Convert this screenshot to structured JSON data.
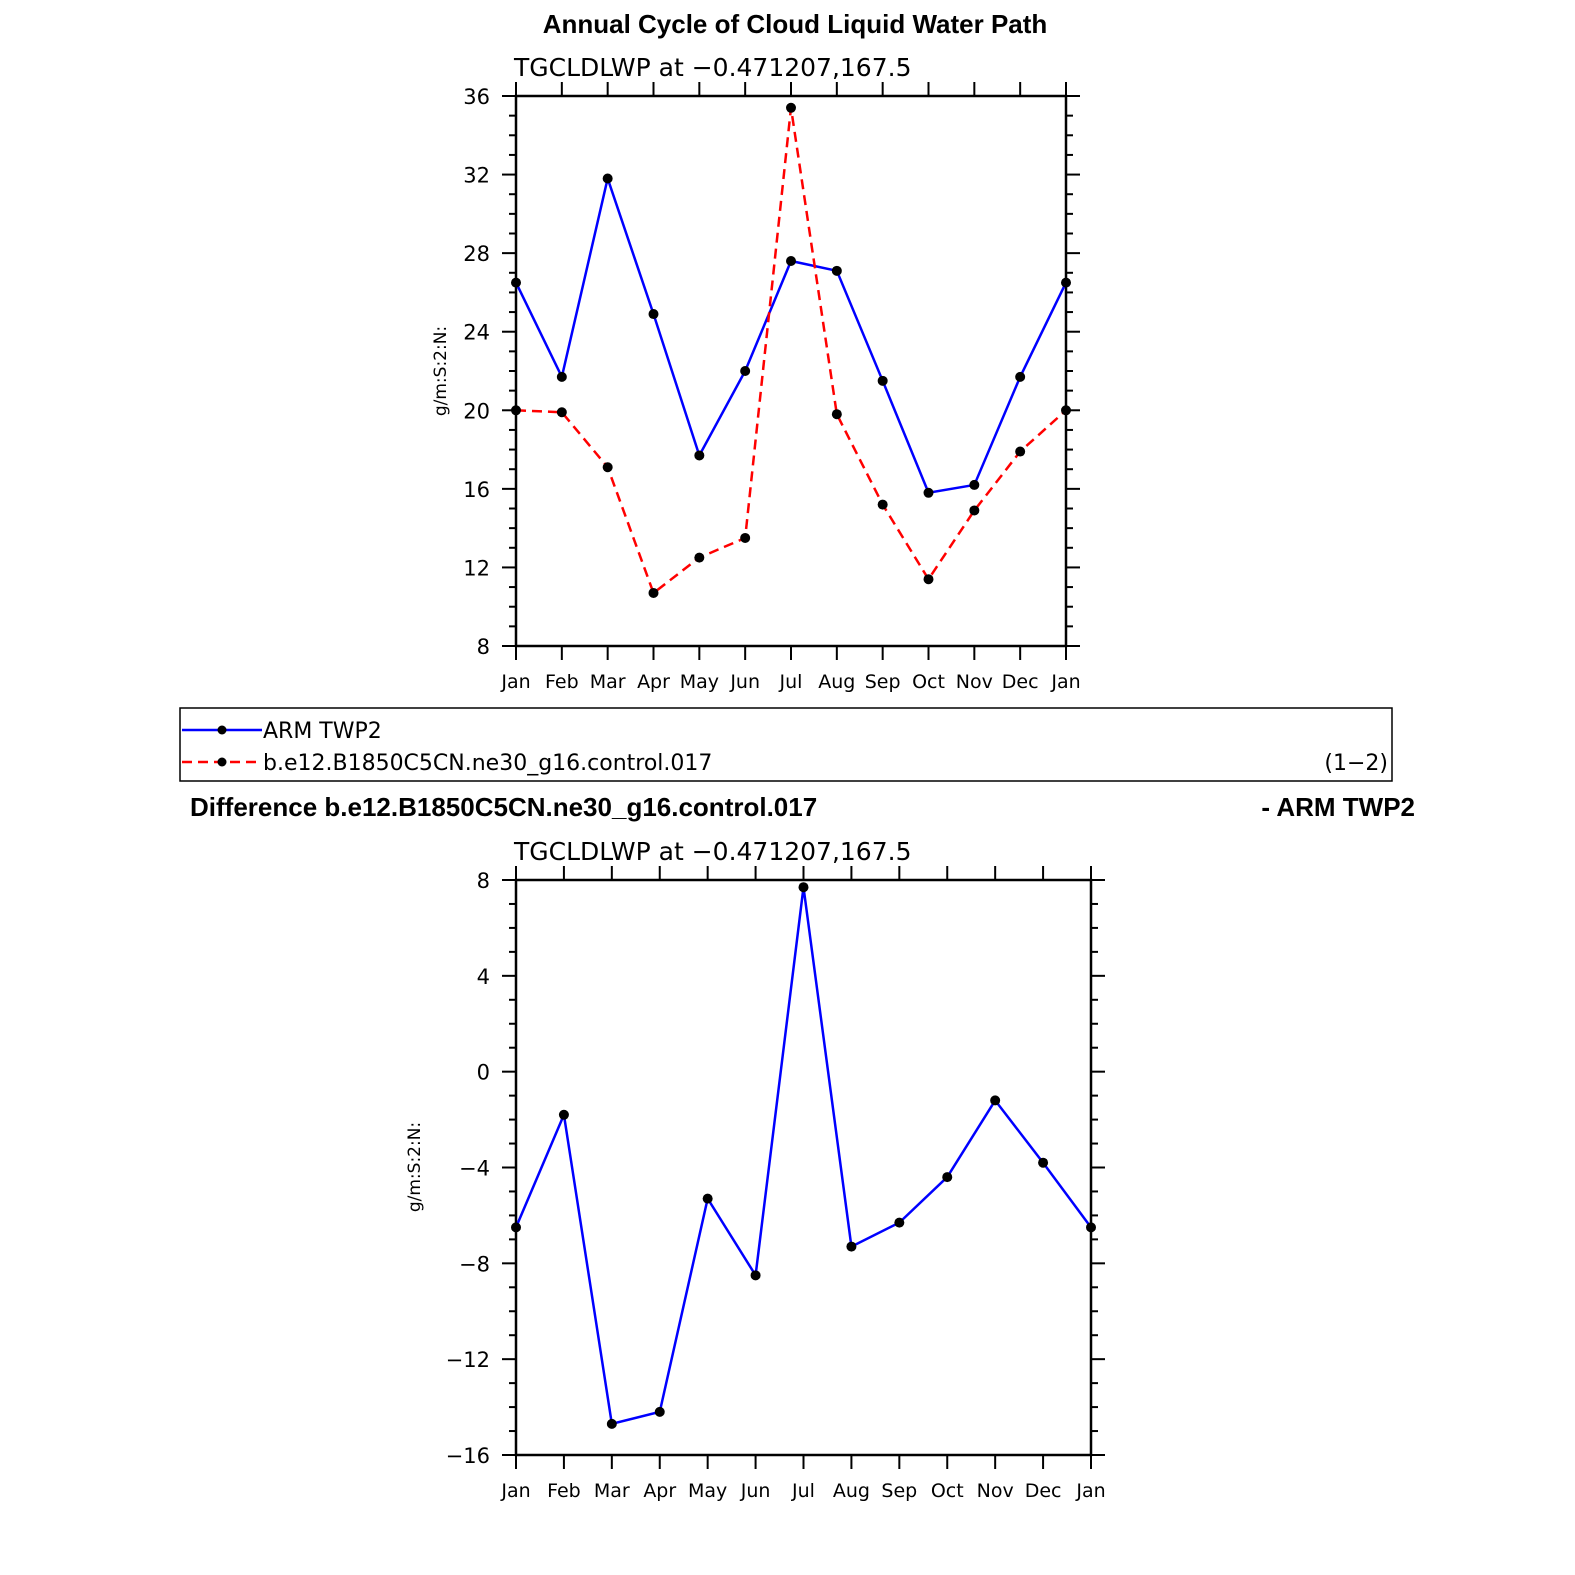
{
  "page": {
    "title": "Annual Cycle of Cloud Liquid Water Path",
    "diff_title_left": "Difference b.e12.B1850C5CN.ne30_g16.control.017",
    "diff_title_right": "- ARM TWP2"
  },
  "legend": {
    "items": [
      {
        "label": "ARM TWP2",
        "color": "#0000ff",
        "dash": "solid"
      },
      {
        "label": "b.e12.B1850C5CN.ne30_g16.control.017",
        "color": "#ff0000",
        "dash": "dashed"
      }
    ],
    "note": "(1−2)"
  },
  "chart_data": [
    {
      "type": "line",
      "subtitle": "TGCLDLWP  at −0.471207,167.5",
      "ylabel": "g/m:S:2:N:",
      "categories": [
        "Jan",
        "Feb",
        "Mar",
        "Apr",
        "May",
        "Jun",
        "Jul",
        "Aug",
        "Sep",
        "Oct",
        "Nov",
        "Dec",
        "Jan"
      ],
      "ylim": [
        8,
        36
      ],
      "yticks": [
        8,
        12,
        16,
        20,
        24,
        28,
        32,
        36
      ],
      "series": [
        {
          "name": "ARM TWP2",
          "color": "#0000ff",
          "dash": "solid",
          "values": [
            26.5,
            21.7,
            31.8,
            24.9,
            17.7,
            22.0,
            27.6,
            27.1,
            21.5,
            15.8,
            16.2,
            21.7,
            26.5
          ]
        },
        {
          "name": "b.e12.B1850C5CN.ne30_g16.control.017",
          "color": "#ff0000",
          "dash": "dashed",
          "values": [
            20.0,
            19.9,
            17.1,
            10.7,
            12.5,
            13.5,
            35.4,
            19.8,
            15.2,
            11.4,
            14.9,
            17.9,
            20.0
          ]
        }
      ]
    },
    {
      "type": "line",
      "subtitle": "TGCLDLWP  at −0.471207,167.5",
      "ylabel": "g/m:S:2:N:",
      "categories": [
        "Jan",
        "Feb",
        "Mar",
        "Apr",
        "May",
        "Jun",
        "Jul",
        "Aug",
        "Sep",
        "Oct",
        "Nov",
        "Dec",
        "Jan"
      ],
      "ylim": [
        -16,
        8
      ],
      "yticks": [
        -16,
        -12,
        -8,
        -4,
        0,
        4,
        8
      ],
      "ytick_labels": [
        "−16",
        "−12",
        "−8",
        "−4",
        "0",
        "4",
        "8"
      ],
      "series": [
        {
          "color": "#0000ff",
          "dash": "solid",
          "values": [
            -6.5,
            -1.8,
            -14.7,
            -14.2,
            -5.3,
            -8.5,
            7.7,
            -7.3,
            -6.3,
            -4.4,
            -1.2,
            -3.8,
            -6.5
          ]
        }
      ]
    }
  ]
}
